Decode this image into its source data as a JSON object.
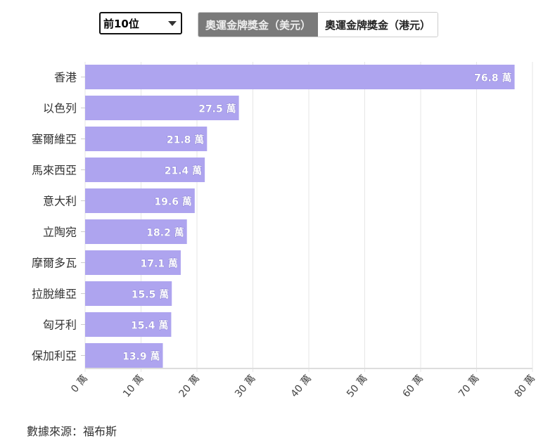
{
  "controls": {
    "rank_select": "前10位",
    "toggle": [
      {
        "label": "奧運金牌獎金（美元）",
        "active": true
      },
      {
        "label": "奧運金牌獎金（港元）",
        "active": false
      }
    ]
  },
  "chart_data": {
    "type": "bar",
    "orientation": "horizontal",
    "categories": [
      "香港",
      "以色列",
      "塞爾維亞",
      "馬來西亞",
      "意大利",
      "立陶宛",
      "摩爾多瓦",
      "拉脫維亞",
      "匈牙利",
      "保加利亞"
    ],
    "values": [
      76.8,
      27.5,
      21.8,
      21.4,
      19.6,
      18.2,
      17.1,
      15.5,
      15.4,
      13.9
    ],
    "data_labels": [
      "76.8 萬",
      "27.5 萬",
      "21.8 萬",
      "21.4 萬",
      "19.6 萬",
      "18.2 萬",
      "17.1 萬",
      "15.5 萬",
      "15.4 萬",
      "13.9 萬"
    ],
    "xlim": [
      0,
      80
    ],
    "x_ticks": [
      0,
      10,
      20,
      30,
      40,
      50,
      60,
      70,
      80
    ],
    "x_tick_labels": [
      "0 萬",
      "10 萬",
      "20 萬",
      "30 萬",
      "40 萬",
      "50 萬",
      "60 萬",
      "70 萬",
      "80 萬"
    ],
    "grid": true,
    "bar_color": "#aea4ef"
  },
  "source": "數據來源：福布斯"
}
